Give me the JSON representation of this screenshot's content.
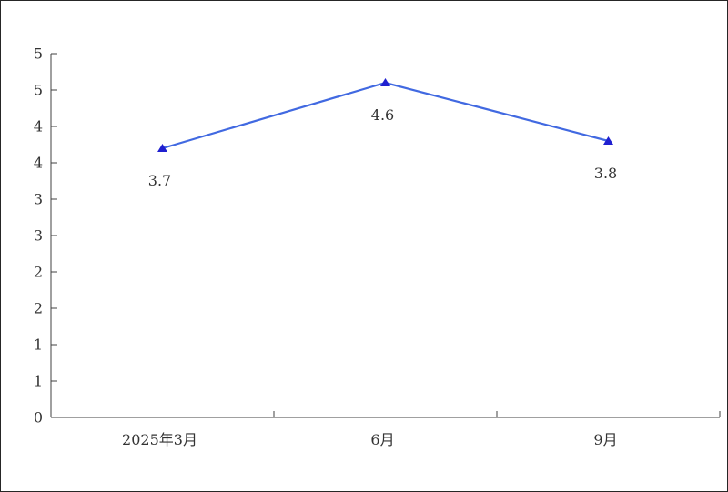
{
  "chart_data": {
    "type": "line",
    "title": "",
    "xlabel": "",
    "ylabel": "",
    "categories": [
      "2025年3月",
      "6月",
      "9月"
    ],
    "series": [
      {
        "name": "",
        "values": [
          3.7,
          4.6,
          3.8
        ],
        "data_labels": [
          "3.7",
          "4.6",
          "3.8"
        ]
      }
    ],
    "ylim": [
      0,
      5
    ],
    "y_tick_step": 0.5,
    "y_tick_labels_top_to_bottom": [
      "5",
      "5",
      "4",
      "4",
      "3",
      "3",
      "2",
      "2",
      "1",
      "1",
      "0"
    ],
    "grid": false,
    "legend_position": "none",
    "marker_shape": "triangle-up",
    "colors": {
      "line": "#4169E1",
      "marker": "#2020D0",
      "axis": "#404040",
      "text": "#333333",
      "background": "#ffffff",
      "frame_border": "#262626"
    }
  }
}
